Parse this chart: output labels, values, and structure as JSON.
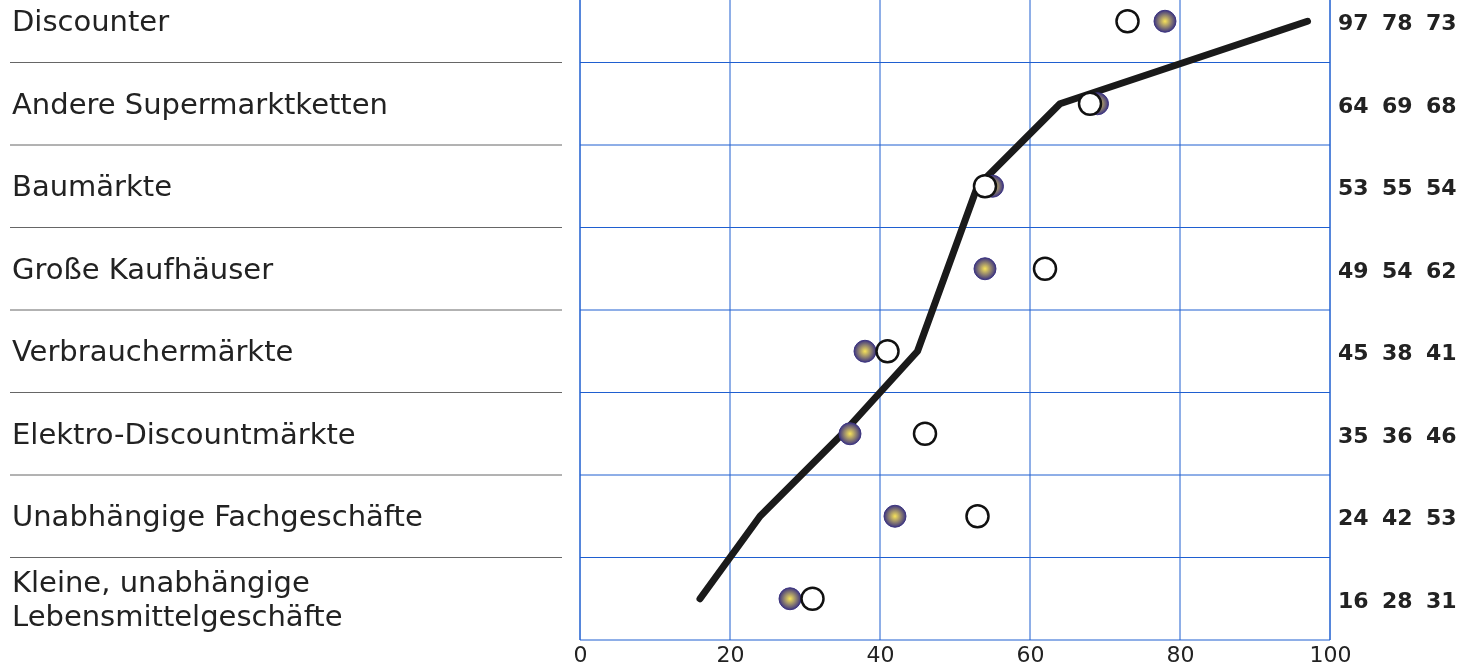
{
  "chart_data": {
    "type": "scatter",
    "orientation": "horizontal",
    "categories": [
      "Discounter",
      "Andere Supermarktketten",
      "Baumärkte",
      "Große Kaufhäuser",
      "Verbrauchermärkte",
      "Elektro-Discountmärkte",
      "Unabhängige Fachgeschäfte",
      "Kleine, unabhängige Lebensmittelgeschäfte"
    ],
    "series": [
      {
        "type": "line",
        "color": "#1a1a1a",
        "values": [
          97,
          64,
          53,
          49,
          45,
          35,
          24,
          16
        ]
      },
      {
        "color": "#3d3580",
        "marker": "circle",
        "values": [
          78,
          69,
          55,
          54,
          38,
          36,
          42,
          28
        ]
      },
      {
        "color": "#111111",
        "marker": "circle",
        "values": [
          73,
          68,
          54,
          62,
          41,
          46,
          53,
          31
        ]
      }
    ],
    "xlim": [
      0,
      100
    ],
    "xticks": [
      0,
      20,
      40,
      60,
      80,
      100
    ],
    "grid": true,
    "data_labels": true
  }
}
